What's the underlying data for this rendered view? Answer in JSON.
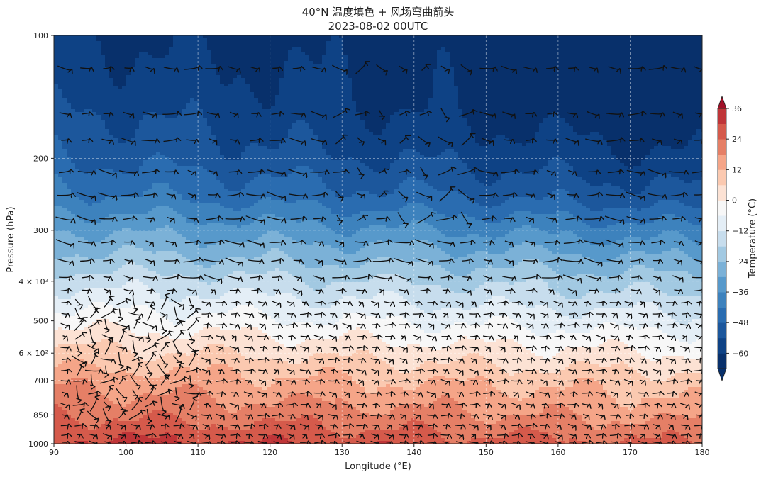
{
  "chart_data": {
    "type": "contour",
    "title": "40°N 温度填色 + 风场弯曲箭头",
    "subtitle": "2023-08-02 00UTC",
    "xlabel": "Longitude (°E)",
    "ylabel": "Pressure (hPa)",
    "colorbar_label": "Temperature (°C)",
    "xlim": [
      90,
      180
    ],
    "ylim": [
      1000,
      100
    ],
    "y_scale": "log",
    "grid": true,
    "x_ticks": [
      {
        "value": 90,
        "label": "90"
      },
      {
        "value": 100,
        "label": "100"
      },
      {
        "value": 110,
        "label": "110"
      },
      {
        "value": 120,
        "label": "120"
      },
      {
        "value": 130,
        "label": "130"
      },
      {
        "value": 140,
        "label": "140"
      },
      {
        "value": 150,
        "label": "150"
      },
      {
        "value": 160,
        "label": "160"
      },
      {
        "value": 170,
        "label": "170"
      },
      {
        "value": 180,
        "label": "180"
      }
    ],
    "y_ticks": [
      {
        "value": 100,
        "label": "100"
      },
      {
        "value": 200,
        "label": "200"
      },
      {
        "value": 300,
        "label": "300"
      },
      {
        "value": 400,
        "label": "4 × 10²"
      },
      {
        "value": 500,
        "label": "500"
      },
      {
        "value": 600,
        "label": "6 × 10²"
      },
      {
        "value": 700,
        "label": "700"
      },
      {
        "value": 850,
        "label": "850"
      },
      {
        "value": 1000,
        "label": "1000"
      }
    ],
    "levels": [
      -66,
      -60,
      -54,
      -48,
      -42,
      -36,
      -30,
      -24,
      -18,
      -12,
      -6,
      0,
      6,
      12,
      18,
      24,
      30,
      36
    ],
    "colors": [
      "#08306b",
      "#0e4285",
      "#1c579c",
      "#2a6cb0",
      "#3d82bd",
      "#5799cb",
      "#7bb1d7",
      "#a2c9e2",
      "#c7dded",
      "#e4eef6",
      "#f7f7f7",
      "#fce2d4",
      "#fbc9b0",
      "#f5a588",
      "#e57f66",
      "#d55a4b",
      "#bf3538",
      "#a11028"
    ],
    "colorbar_ticks": [
      {
        "value": 36,
        "label": "36"
      },
      {
        "value": 24,
        "label": "24"
      },
      {
        "value": 12,
        "label": "12"
      },
      {
        "value": 0,
        "label": "0"
      },
      {
        "value": -12,
        "label": "−12"
      },
      {
        "value": -24,
        "label": "−24"
      },
      {
        "value": -36,
        "label": "−36"
      },
      {
        "value": -48,
        "label": "−48"
      },
      {
        "value": -60,
        "label": "−60"
      }
    ],
    "temperature_profile": [
      {
        "p": 100,
        "t_west": -60,
        "t_east": -66
      },
      {
        "p": 150,
        "t_west": -54,
        "t_east": -66
      },
      {
        "p": 200,
        "t_west": -48,
        "t_east": -60
      },
      {
        "p": 250,
        "t_west": -40,
        "t_east": -52
      },
      {
        "p": 300,
        "t_west": -30,
        "t_east": -40
      },
      {
        "p": 350,
        "t_west": -22,
        "t_east": -30
      },
      {
        "p": 400,
        "t_west": -14,
        "t_east": -22
      },
      {
        "p": 500,
        "t_west": -2,
        "t_east": -10
      },
      {
        "p": 600,
        "t_west": 8,
        "t_east": 0
      },
      {
        "p": 700,
        "t_west": 16,
        "t_east": 8
      },
      {
        "p": 850,
        "t_west": 24,
        "t_east": 16
      },
      {
        "p": 1000,
        "t_west": 32,
        "t_east": 24
      }
    ],
    "wind_arrows": "curved black arrows, predominantly westerly (pointing east), length proportional to speed; stronger flow in the upper troposphere, swirling convection near 95–110°E below 500 hPa"
  }
}
